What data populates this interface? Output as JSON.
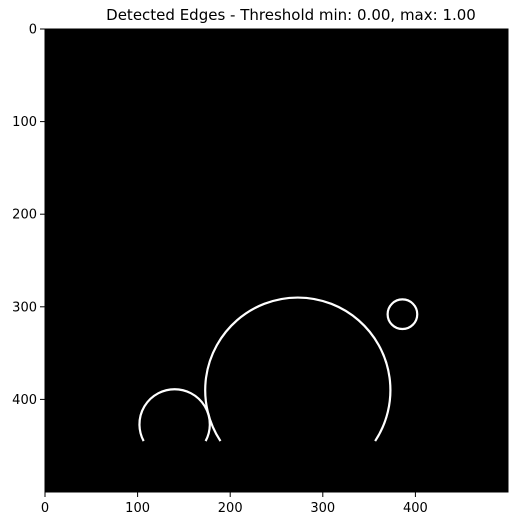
{
  "chart_data": {
    "type": "heatmap",
    "title": "Detected Edges - Threshold min: 0.00, max: 1.00",
    "xlabel": "",
    "ylabel": "",
    "xlim": [
      0,
      500
    ],
    "ylim": [
      500,
      0
    ],
    "image_size": [
      500,
      500
    ],
    "background_color": "#000000",
    "edge_color": "#ffffff",
    "x_ticks": [
      {
        "value": 0,
        "label": "0"
      },
      {
        "value": 100,
        "label": "100"
      },
      {
        "value": 200,
        "label": "200"
      },
      {
        "value": 300,
        "label": "300"
      },
      {
        "value": 400,
        "label": "400"
      }
    ],
    "y_ticks": [
      {
        "value": 0,
        "label": "0"
      },
      {
        "value": 100,
        "label": "100"
      },
      {
        "value": 200,
        "label": "200"
      },
      {
        "value": 300,
        "label": "300"
      },
      {
        "value": 400,
        "label": "400"
      }
    ],
    "edge_arcs": [
      {
        "name": "large-circle-edge",
        "cx": 273,
        "cy": 390,
        "r": 100,
        "open_bottom_y": 445
      },
      {
        "name": "left-circle-edge",
        "cx": 140,
        "cy": 427,
        "r": 38,
        "open_bottom_y": 445
      },
      {
        "name": "small-circle-edge",
        "cx": 386,
        "cy": 308,
        "r": 16,
        "open_bottom_y": null
      }
    ]
  }
}
